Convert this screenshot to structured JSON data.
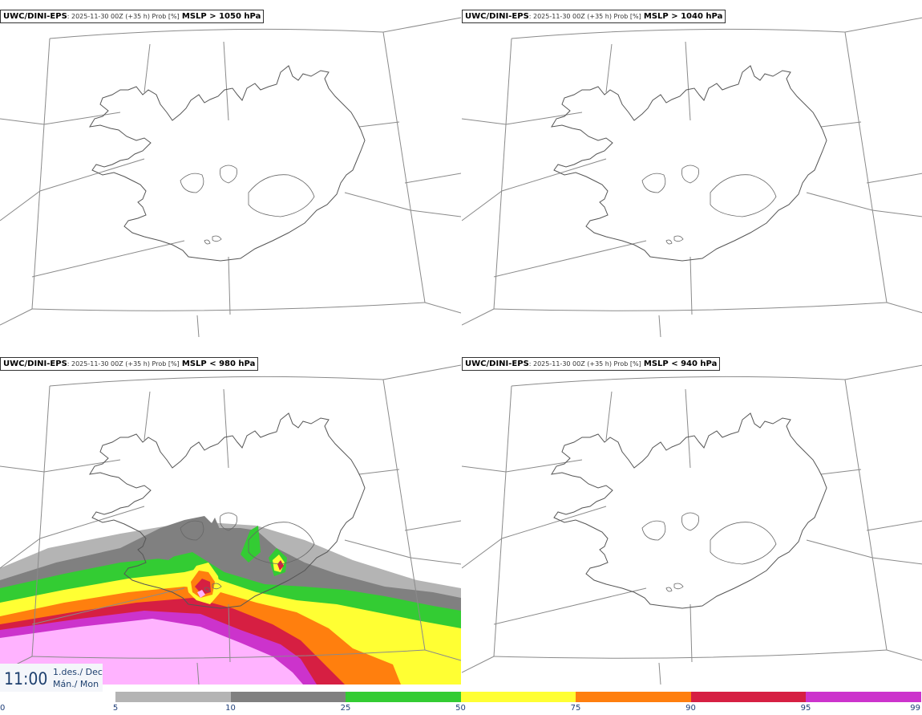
{
  "panels": [
    {
      "model": "UWC/DINI-EPS",
      "mid": ": 2025-11-30 00Z (+35 h) Prob [%]",
      "field": "MSLP > 1050 hPa"
    },
    {
      "model": "UWC/DINI-EPS",
      "mid": ": 2025-11-30 00Z (+35 h) Prob [%]",
      "field": "MSLP > 1040 hPa"
    },
    {
      "model": "UWC/DINI-EPS",
      "mid": ": 2025-11-30 00Z (+35 h) Prob [%]",
      "field": "MSLP < 980 hPa"
    },
    {
      "model": "UWC/DINI-EPS",
      "mid": ": 2025-11-30 00Z (+35 h) Prob [%]",
      "field": "MSLP < 940 hPa"
    }
  ],
  "time": {
    "hour": "11:00",
    "day_line": "1.des./ Dec",
    "weekday_line": "Mán./ Mon"
  },
  "colorbar": {
    "ticks": [
      "0",
      "5",
      "10",
      "25",
      "50",
      "75",
      "90",
      "95",
      "99"
    ],
    "colors": [
      "#ffffff",
      "#b4b4b4",
      "#808080",
      "#33cc33",
      "#ffff33",
      "#ff7f0e",
      "#d61f42",
      "#cc33cc",
      "#ffb3ff"
    ]
  }
}
